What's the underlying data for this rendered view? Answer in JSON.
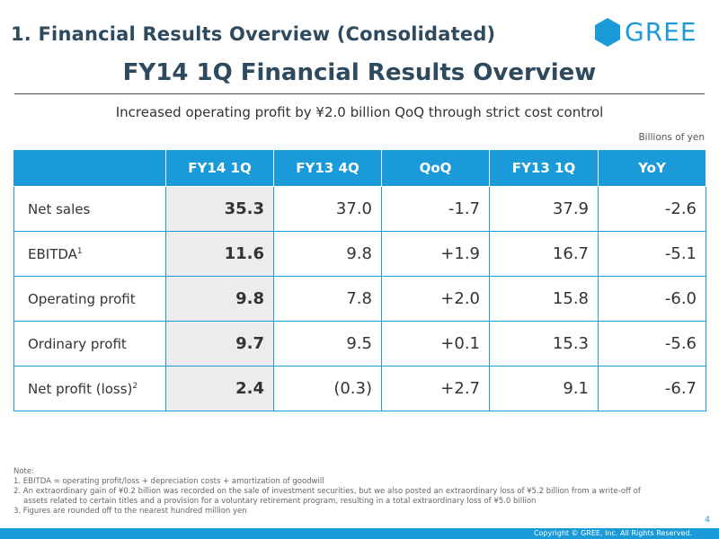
{
  "header": {
    "section_title": "1. Financial Results Overview (Consolidated)",
    "logo_text": "GREE",
    "main_title": "FY14 1Q Financial Results Overview",
    "subtitle": "Increased operating profit by ¥2.0 billion QoQ through strict cost control",
    "unit": "Billions of yen"
  },
  "colors": {
    "brand": "#1a9ad9",
    "title": "#2e4a5e",
    "highlight_cell": "#ececec"
  },
  "table": {
    "columns": [
      "",
      "FY14 1Q",
      "FY13 4Q",
      "QoQ",
      "FY13 1Q",
      "YoY"
    ],
    "rows": [
      {
        "label": "Net sales",
        "sup": "",
        "values": [
          "35.3",
          "37.0",
          "-1.7",
          "37.9",
          "-2.6"
        ]
      },
      {
        "label": "EBITDA",
        "sup": "1",
        "values": [
          "11.6",
          "9.8",
          "+1.9",
          "16.7",
          "-5.1"
        ]
      },
      {
        "label": "Operating profit",
        "sup": "",
        "values": [
          "9.8",
          "7.8",
          "+2.0",
          "15.8",
          "-6.0"
        ]
      },
      {
        "label": "Ordinary profit",
        "sup": "",
        "values": [
          "9.7",
          "9.5",
          "+0.1",
          "15.3",
          "-5.6"
        ]
      },
      {
        "label": "Net profit (loss)",
        "sup": "2",
        "values": [
          "2.4",
          "(0.3)",
          "+2.7",
          "9.1",
          "-6.7"
        ]
      }
    ]
  },
  "notes": {
    "heading": "Note:",
    "items": [
      "1. EBITDA = operating profit/loss + depreciation costs + amortization of goodwill",
      "2. An extraordinary gain of ¥0.2 billion was recorded on the sale of investment securities, but we also posted an extraordinary loss of ¥5.2 billion from a write-off of",
      "assets related to certain titles and a provision for a voluntary retirement program, resulting in a total extraordinary loss of ¥5.0 billion",
      "3. Figures are rounded off to the nearest hundred million yen"
    ]
  },
  "footer": {
    "page_number": "4",
    "copyright": "Copyright © GREE, Inc. All Rights Reserved."
  }
}
